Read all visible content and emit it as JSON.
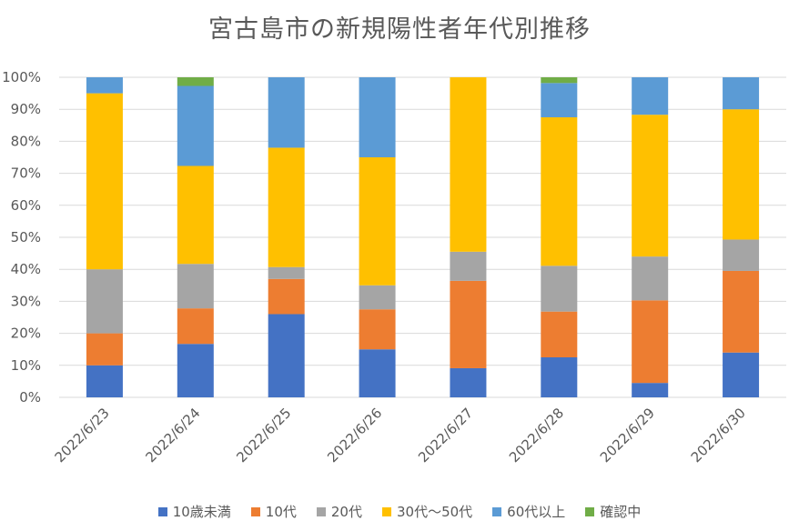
{
  "chart_data": {
    "type": "bar",
    "stacked": true,
    "normalized": true,
    "title": "宮古島市の新規陽性者年代別推移",
    "xlabel": "",
    "ylabel": "",
    "ylim": [
      0,
      100
    ],
    "yticks": [
      "0%",
      "10%",
      "20%",
      "30%",
      "40%",
      "50%",
      "60%",
      "70%",
      "80%",
      "90%",
      "100%"
    ],
    "categories": [
      "2022/6/23",
      "2022/6/24",
      "2022/6/25",
      "2022/6/26",
      "2022/6/27",
      "2022/6/28",
      "2022/6/29",
      "2022/6/30"
    ],
    "series": [
      {
        "name": "10歳未満",
        "color": "#4472C4",
        "values": [
          10,
          16.7,
          26,
          15,
          9.1,
          12.5,
          4.5,
          14
        ]
      },
      {
        "name": "10代",
        "color": "#ED7D31",
        "values": [
          10,
          11.1,
          11,
          12.5,
          27.3,
          14.3,
          25.8,
          25.5
        ]
      },
      {
        "name": "20代",
        "color": "#A5A5A5",
        "values": [
          20,
          13.9,
          3.7,
          7.5,
          9.1,
          14.3,
          13.7,
          9.8
        ]
      },
      {
        "name": "30代～50代",
        "color": "#FFC000",
        "values": [
          55,
          30.6,
          37.3,
          40,
          54.5,
          46.4,
          44.3,
          40.7
        ]
      },
      {
        "name": "60代以上",
        "color": "#5B9BD5",
        "values": [
          5,
          25,
          22,
          25,
          0,
          10.7,
          11.7,
          10
        ]
      },
      {
        "name": "確認中",
        "color": "#70AD47",
        "values": [
          0,
          2.7,
          0,
          0,
          0,
          1.8,
          0,
          0
        ]
      }
    ],
    "legend_position": "bottom",
    "grid": true
  }
}
